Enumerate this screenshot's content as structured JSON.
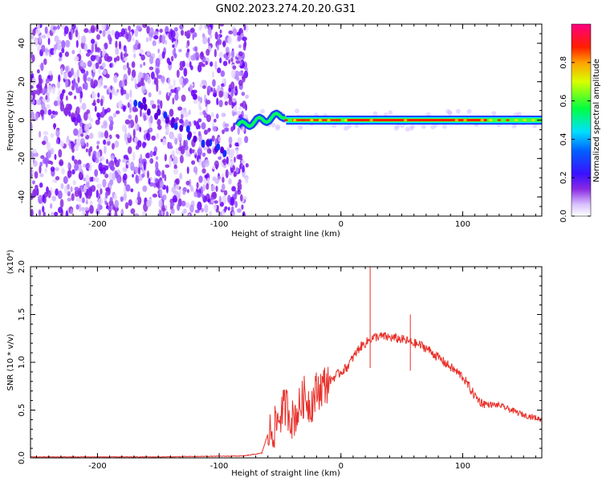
{
  "title": "GN02.2023.274.20.20.G31",
  "chart_data": [
    {
      "type": "heatmap",
      "xlabel": "Height of straight line (km)",
      "ylabel": "Frequency (Hz)",
      "xlim": [
        -255,
        165
      ],
      "ylim": [
        -50,
        50
      ],
      "x_ticks": [
        -200,
        -100,
        0,
        100
      ],
      "y_ticks": [
        -40,
        -20,
        0,
        20,
        40
      ],
      "colorbar": {
        "label": "Normalized spectral amplitude",
        "range": [
          0,
          1
        ],
        "ticks": [
          "0.0",
          "0.2",
          "0.4",
          "0.6",
          "0.8"
        ],
        "colormap": "rainbow (white, purple, blue, cyan, green, yellow, red, magenta)"
      },
      "features": {
        "noise_region_x": [
          -255,
          -85
        ],
        "tone_start_x": -85,
        "tone_frequency_hz": 0,
        "diagonal_streak": {
          "x": [
            -170,
            -95
          ],
          "freq": [
            10,
            -18
          ]
        },
        "early_deviation": {
          "x": [
            -85,
            -45
          ],
          "freq": [
            -3,
            3
          ]
        }
      }
    },
    {
      "type": "line",
      "xlabel": "Height of straight line (km)",
      "ylabel": "SNR (10 * v/v)",
      "yscale_label": "(x10⁴)",
      "xlim": [
        -255,
        165
      ],
      "ylim": [
        0,
        2.0
      ],
      "x_ticks": [
        -200,
        -100,
        0,
        100
      ],
      "y_ticks": [
        "0.0",
        "0.5",
        "1.0",
        "1.5",
        "2.0"
      ],
      "color": "#e8302a",
      "series": [
        {
          "x": [
            -255,
            -150,
            -80,
            -65,
            -60,
            -55,
            -50,
            -45,
            -40,
            -35,
            -30,
            -25,
            -20,
            -15,
            -10,
            -5,
            0,
            5,
            10,
            15,
            20,
            25,
            30,
            35,
            40,
            45,
            50,
            55,
            60,
            65,
            70,
            75,
            80,
            85,
            90,
            95,
            100,
            105,
            110,
            115,
            120,
            130,
            140,
            150,
            160,
            165
          ],
          "y": [
            0.01,
            0.01,
            0.02,
            0.05,
            0.25,
            0.3,
            0.45,
            0.55,
            0.4,
            0.5,
            0.65,
            0.55,
            0.7,
            0.75,
            0.8,
            0.85,
            0.9,
            0.95,
            1.05,
            1.15,
            1.2,
            1.25,
            1.27,
            1.27,
            1.26,
            1.25,
            1.24,
            1.22,
            1.2,
            1.18,
            1.15,
            1.1,
            1.05,
            1.0,
            0.95,
            0.9,
            0.85,
            0.75,
            0.65,
            0.58,
            0.56,
            0.55,
            0.5,
            0.45,
            0.42,
            0.4
          ]
        }
      ],
      "spikes": [
        {
          "x": 24,
          "y": 2.0
        },
        {
          "x": 57,
          "y": 1.5
        }
      ]
    }
  ]
}
